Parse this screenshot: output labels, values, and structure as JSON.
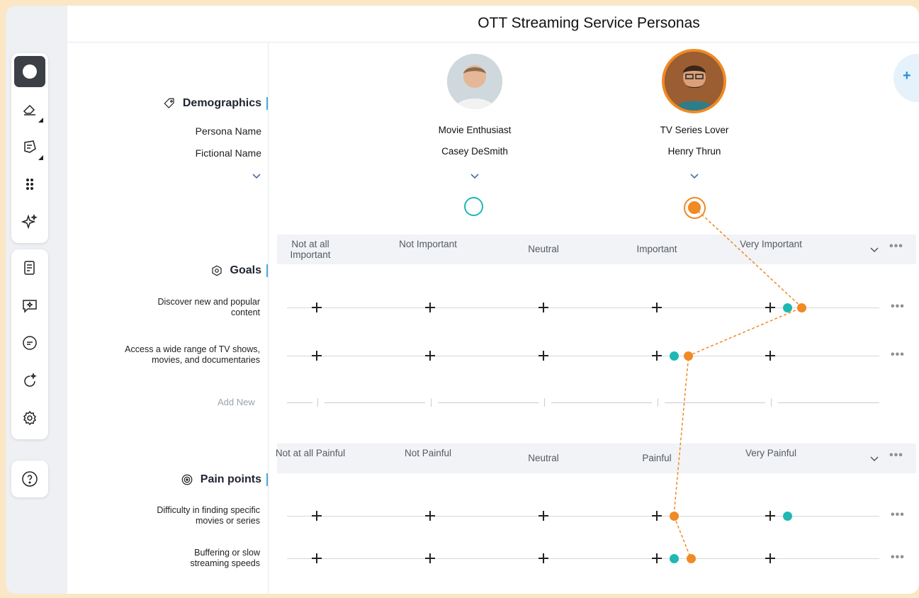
{
  "title": "OTT Streaming Service Personas",
  "toolbar_top": [
    {
      "icon": "record-icon",
      "active": true
    },
    {
      "icon": "eraser-icon",
      "active": false
    },
    {
      "icon": "sticky-note-icon",
      "active": false
    },
    {
      "icon": "grid-dots-icon",
      "active": false
    },
    {
      "icon": "sparkle-icon",
      "active": false
    }
  ],
  "toolbar_mid": [
    {
      "icon": "note-add-icon"
    },
    {
      "icon": "comment-ai-icon"
    },
    {
      "icon": "chat-icon"
    },
    {
      "icon": "ai-refresh-icon"
    },
    {
      "icon": "settings-icon"
    }
  ],
  "help_icon": "help-icon",
  "sections": {
    "demographics": "Demographics",
    "persona_name_label": "Persona Name",
    "fictional_name_label": "Fictional Name",
    "goals": "Goals",
    "pain_points": "Pain points",
    "add_new": "Add New"
  },
  "personas": [
    {
      "persona_name": "Movie Enthusiast",
      "fictional_name": "Casey DeSmith",
      "color": "#1fb8b2"
    },
    {
      "persona_name": "TV Series Lover",
      "fictional_name": "Henry Thrun",
      "color": "#ef8a24"
    }
  ],
  "goal_scale": [
    "Not at all Important",
    "Not Important",
    "Neutral",
    "Important",
    "Very Important"
  ],
  "pain_scale": [
    "Not at all Painful",
    "Not Painful",
    "Neutral",
    "Painful",
    "Very Painful"
  ],
  "goals": [
    {
      "label": "Discover new and popular content",
      "casey": 4.15,
      "henry": 4.28
    },
    {
      "label": "Access a wide range of TV shows, movies, and documentaries",
      "casey": 3.15,
      "henry": 3.28
    }
  ],
  "pain_points": [
    {
      "label": "Difficulty in finding specific movies or series",
      "casey": 4.15,
      "henry": 3.15
    },
    {
      "label": "Buffering or slow streaming speeds",
      "casey": 3.15,
      "henry": 3.3
    }
  ]
}
